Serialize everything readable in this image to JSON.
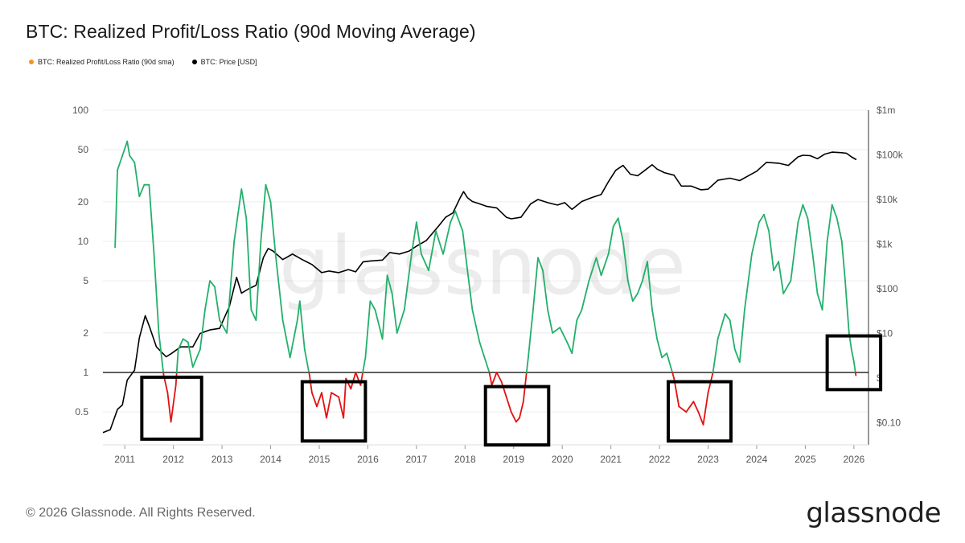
{
  "title": "BTC: Realized Profit/Loss Ratio (90d Moving Average)",
  "legend": [
    {
      "label": "BTC: Realized Profit/Loss Ratio (90d sma)",
      "color": "#f7931a"
    },
    {
      "label": "BTC: Price [USD]",
      "color": "#000000"
    }
  ],
  "footer": "© 2026 Glassnode. All Rights Reserved.",
  "logo": "glassnode",
  "watermark": "glassnode",
  "colors": {
    "ratio_above_one": "#22b06b",
    "ratio_below_one": "#e41010",
    "price": "#000000",
    "reference_line": "#000000",
    "highlight_box": "#000000",
    "grid": "#ececec"
  },
  "chart_data": {
    "type": "line",
    "x_axis": {
      "range": [
        2010.55,
        2026.3
      ],
      "tick_labels": [
        "2011",
        "2012",
        "2013",
        "2014",
        "2015",
        "2016",
        "2017",
        "2018",
        "2019",
        "2020",
        "2021",
        "2022",
        "2023",
        "2024",
        "2025",
        "2026"
      ],
      "tick_values": [
        2011,
        2012,
        2013,
        2014,
        2015,
        2016,
        2017,
        2018,
        2019,
        2020,
        2021,
        2022,
        2023,
        2024,
        2025,
        2026
      ]
    },
    "y_left": {
      "scale": "log",
      "range": [
        0.3,
        100
      ],
      "tick_labels": [
        "100",
        "50",
        "20",
        "10",
        "5",
        "2",
        "1",
        "0.5"
      ],
      "tick_values": [
        100,
        50,
        20,
        10,
        5,
        2,
        1,
        0.5
      ]
    },
    "y_right": {
      "scale": "log",
      "range": [
        0.05,
        1000000
      ],
      "tick_labels": [
        "$1m",
        "$100k",
        "$10k",
        "$1k",
        "$100",
        "$10",
        "$",
        "$0.10"
      ],
      "tick_values": [
        1000000,
        100000,
        10000,
        1000,
        100,
        10,
        1,
        0.1
      ]
    },
    "reference_line": 1,
    "grid": true,
    "legend_position": "top-left",
    "series": [
      {
        "name": "BTC: Realized Profit/Loss Ratio (90d sma)",
        "axis": "left",
        "points": [
          [
            2010.8,
            9.0
          ],
          [
            2010.85,
            35
          ],
          [
            2010.95,
            45
          ],
          [
            2011.05,
            58
          ],
          [
            2011.1,
            45
          ],
          [
            2011.2,
            40
          ],
          [
            2011.3,
            22
          ],
          [
            2011.4,
            27
          ],
          [
            2011.5,
            27
          ],
          [
            2011.6,
            8
          ],
          [
            2011.7,
            2
          ],
          [
            2011.8,
            0.95
          ],
          [
            2011.88,
            0.7
          ],
          [
            2011.95,
            0.42
          ],
          [
            2012.05,
            0.8
          ],
          [
            2012.1,
            1.5
          ],
          [
            2012.2,
            1.8
          ],
          [
            2012.3,
            1.7
          ],
          [
            2012.4,
            1.1
          ],
          [
            2012.55,
            1.5
          ],
          [
            2012.65,
            3.0
          ],
          [
            2012.75,
            5.0
          ],
          [
            2012.85,
            4.5
          ],
          [
            2012.95,
            2.5
          ],
          [
            2013.1,
            2.0
          ],
          [
            2013.25,
            10
          ],
          [
            2013.4,
            25
          ],
          [
            2013.5,
            15
          ],
          [
            2013.6,
            3.0
          ],
          [
            2013.7,
            2.5
          ],
          [
            2013.8,
            10
          ],
          [
            2013.9,
            27
          ],
          [
            2014.0,
            20
          ],
          [
            2014.1,
            8
          ],
          [
            2014.25,
            2.5
          ],
          [
            2014.4,
            1.3
          ],
          [
            2014.55,
            2.5
          ],
          [
            2014.6,
            3.5
          ],
          [
            2014.7,
            1.5
          ],
          [
            2014.8,
            0.95
          ],
          [
            2014.85,
            0.7
          ],
          [
            2014.95,
            0.55
          ],
          [
            2015.05,
            0.7
          ],
          [
            2015.15,
            0.45
          ],
          [
            2015.25,
            0.7
          ],
          [
            2015.4,
            0.65
          ],
          [
            2015.5,
            0.45
          ],
          [
            2015.55,
            0.9
          ],
          [
            2015.65,
            0.75
          ],
          [
            2015.75,
            1.0
          ],
          [
            2015.85,
            0.8
          ],
          [
            2015.95,
            1.3
          ],
          [
            2016.05,
            3.5
          ],
          [
            2016.15,
            3.0
          ],
          [
            2016.3,
            1.8
          ],
          [
            2016.4,
            5.5
          ],
          [
            2016.5,
            4.0
          ],
          [
            2016.6,
            2.0
          ],
          [
            2016.75,
            3.0
          ],
          [
            2016.9,
            8
          ],
          [
            2017.0,
            14
          ],
          [
            2017.1,
            8
          ],
          [
            2017.25,
            6
          ],
          [
            2017.4,
            12
          ],
          [
            2017.55,
            8
          ],
          [
            2017.7,
            14
          ],
          [
            2017.8,
            17
          ],
          [
            2017.95,
            12
          ],
          [
            2018.05,
            6
          ],
          [
            2018.15,
            3.0
          ],
          [
            2018.3,
            1.7
          ],
          [
            2018.4,
            1.3
          ],
          [
            2018.5,
            1.0
          ],
          [
            2018.55,
            0.8
          ],
          [
            2018.65,
            1.0
          ],
          [
            2018.75,
            0.85
          ],
          [
            2018.85,
            0.65
          ],
          [
            2018.95,
            0.5
          ],
          [
            2019.05,
            0.42
          ],
          [
            2019.12,
            0.45
          ],
          [
            2019.2,
            0.6
          ],
          [
            2019.3,
            1.3
          ],
          [
            2019.4,
            3.0
          ],
          [
            2019.5,
            7.5
          ],
          [
            2019.6,
            6
          ],
          [
            2019.7,
            3.0
          ],
          [
            2019.8,
            2.0
          ],
          [
            2019.95,
            2.2
          ],
          [
            2020.1,
            1.7
          ],
          [
            2020.2,
            1.4
          ],
          [
            2020.3,
            2.5
          ],
          [
            2020.4,
            3.0
          ],
          [
            2020.55,
            5.0
          ],
          [
            2020.7,
            7.5
          ],
          [
            2020.8,
            5.5
          ],
          [
            2020.95,
            8
          ],
          [
            2021.05,
            13
          ],
          [
            2021.15,
            15
          ],
          [
            2021.25,
            10
          ],
          [
            2021.35,
            5.0
          ],
          [
            2021.45,
            3.5
          ],
          [
            2021.55,
            4.0
          ],
          [
            2021.65,
            5.0
          ],
          [
            2021.75,
            7
          ],
          [
            2021.85,
            3.0
          ],
          [
            2021.95,
            1.8
          ],
          [
            2022.05,
            1.3
          ],
          [
            2022.15,
            1.4
          ],
          [
            2022.3,
            0.9
          ],
          [
            2022.4,
            0.55
          ],
          [
            2022.55,
            0.5
          ],
          [
            2022.7,
            0.6
          ],
          [
            2022.8,
            0.5
          ],
          [
            2022.9,
            0.4
          ],
          [
            2023.0,
            0.7
          ],
          [
            2023.1,
            1.0
          ],
          [
            2023.2,
            1.8
          ],
          [
            2023.35,
            2.8
          ],
          [
            2023.45,
            2.5
          ],
          [
            2023.55,
            1.5
          ],
          [
            2023.65,
            1.2
          ],
          [
            2023.75,
            3.0
          ],
          [
            2023.9,
            8
          ],
          [
            2024.05,
            14
          ],
          [
            2024.15,
            16
          ],
          [
            2024.25,
            12
          ],
          [
            2024.35,
            6
          ],
          [
            2024.45,
            7
          ],
          [
            2024.55,
            4.0
          ],
          [
            2024.7,
            5.0
          ],
          [
            2024.85,
            14
          ],
          [
            2024.95,
            19
          ],
          [
            2025.05,
            15
          ],
          [
            2025.15,
            8
          ],
          [
            2025.25,
            4.0
          ],
          [
            2025.35,
            3.0
          ],
          [
            2025.45,
            10
          ],
          [
            2025.55,
            19
          ],
          [
            2025.65,
            15
          ],
          [
            2025.75,
            10
          ],
          [
            2025.82,
            5.0
          ],
          [
            2025.9,
            2.0
          ],
          [
            2025.95,
            1.5
          ],
          [
            2026.0,
            1.2
          ],
          [
            2026.04,
            0.95
          ]
        ]
      },
      {
        "name": "BTC: Price [USD]",
        "axis": "right",
        "points": [
          [
            2010.55,
            0.06
          ],
          [
            2010.7,
            0.07
          ],
          [
            2010.85,
            0.2
          ],
          [
            2010.95,
            0.25
          ],
          [
            2011.05,
            0.9
          ],
          [
            2011.2,
            1.5
          ],
          [
            2011.3,
            8
          ],
          [
            2011.42,
            25
          ],
          [
            2011.5,
            15
          ],
          [
            2011.65,
            5
          ],
          [
            2011.85,
            3
          ],
          [
            2011.95,
            3.5
          ],
          [
            2012.15,
            5
          ],
          [
            2012.4,
            5
          ],
          [
            2012.55,
            10
          ],
          [
            2012.75,
            12
          ],
          [
            2012.95,
            13
          ],
          [
            2013.15,
            40
          ],
          [
            2013.3,
            180
          ],
          [
            2013.4,
            80
          ],
          [
            2013.55,
            100
          ],
          [
            2013.7,
            120
          ],
          [
            2013.85,
            500
          ],
          [
            2013.95,
            800
          ],
          [
            2014.05,
            700
          ],
          [
            2014.25,
            450
          ],
          [
            2014.45,
            600
          ],
          [
            2014.65,
            450
          ],
          [
            2014.85,
            350
          ],
          [
            2015.05,
            230
          ],
          [
            2015.2,
            250
          ],
          [
            2015.4,
            230
          ],
          [
            2015.6,
            270
          ],
          [
            2015.75,
            240
          ],
          [
            2015.9,
            400
          ],
          [
            2016.05,
            420
          ],
          [
            2016.3,
            440
          ],
          [
            2016.45,
            650
          ],
          [
            2016.65,
            600
          ],
          [
            2016.85,
            700
          ],
          [
            2017.0,
            900
          ],
          [
            2017.2,
            1200
          ],
          [
            2017.45,
            2500
          ],
          [
            2017.6,
            4000
          ],
          [
            2017.75,
            5000
          ],
          [
            2017.9,
            11000
          ],
          [
            2017.97,
            15000
          ],
          [
            2018.05,
            11000
          ],
          [
            2018.15,
            9000
          ],
          [
            2018.3,
            8000
          ],
          [
            2018.45,
            7000
          ],
          [
            2018.65,
            6500
          ],
          [
            2018.85,
            4000
          ],
          [
            2018.95,
            3700
          ],
          [
            2019.15,
            4000
          ],
          [
            2019.35,
            8000
          ],
          [
            2019.5,
            10000
          ],
          [
            2019.7,
            8500
          ],
          [
            2019.9,
            7500
          ],
          [
            2020.05,
            8500
          ],
          [
            2020.2,
            6000
          ],
          [
            2020.4,
            9000
          ],
          [
            2020.6,
            11000
          ],
          [
            2020.8,
            13000
          ],
          [
            2020.95,
            25000
          ],
          [
            2021.1,
            45000
          ],
          [
            2021.25,
            58000
          ],
          [
            2021.4,
            37000
          ],
          [
            2021.55,
            34000
          ],
          [
            2021.7,
            45000
          ],
          [
            2021.85,
            60000
          ],
          [
            2021.95,
            48000
          ],
          [
            2022.1,
            40000
          ],
          [
            2022.3,
            35000
          ],
          [
            2022.45,
            20000
          ],
          [
            2022.65,
            20000
          ],
          [
            2022.85,
            16500
          ],
          [
            2023.0,
            17000
          ],
          [
            2023.2,
            27000
          ],
          [
            2023.45,
            30000
          ],
          [
            2023.65,
            26500
          ],
          [
            2023.85,
            35000
          ],
          [
            2024.0,
            43000
          ],
          [
            2024.2,
            68000
          ],
          [
            2024.45,
            65000
          ],
          [
            2024.65,
            58000
          ],
          [
            2024.85,
            90000
          ],
          [
            2024.95,
            98000
          ],
          [
            2025.1,
            96000
          ],
          [
            2025.25,
            82000
          ],
          [
            2025.4,
            104000
          ],
          [
            2025.55,
            115000
          ],
          [
            2025.75,
            112000
          ],
          [
            2025.85,
            108000
          ],
          [
            2025.95,
            90000
          ],
          [
            2026.05,
            78000
          ]
        ]
      }
    ],
    "highlight_boxes": [
      {
        "x": [
          2011.35,
          2012.58
        ],
        "y_left": [
          0.31,
          0.92
        ]
      },
      {
        "x": [
          2014.65,
          2015.95
        ],
        "y_left": [
          0.3,
          0.85
        ]
      },
      {
        "x": [
          2018.42,
          2019.72
        ],
        "y_left": [
          0.28,
          0.78
        ]
      },
      {
        "x": [
          2022.18,
          2023.47
        ],
        "y_left": [
          0.3,
          0.85
        ]
      },
      {
        "x": [
          2025.45,
          2026.55
        ],
        "y_left": [
          0.74,
          1.9
        ]
      }
    ]
  }
}
